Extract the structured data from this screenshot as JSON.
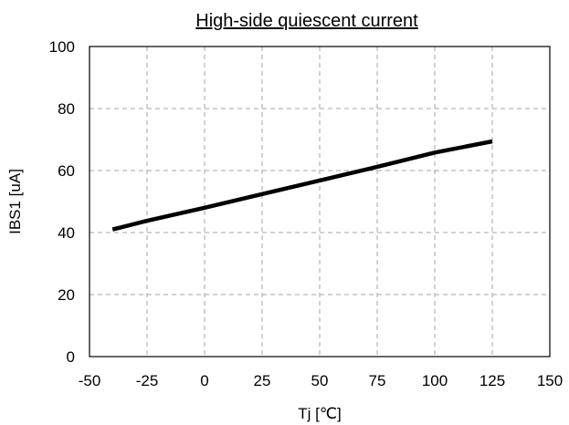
{
  "chart_data": {
    "type": "line",
    "title": "High-side quiescent current",
    "xlabel": "Tj [℃]",
    "ylabel": "IBS1 [uA]",
    "xlim": [
      -50,
      150
    ],
    "ylim": [
      0,
      100
    ],
    "xticks": [
      -50,
      -25,
      0,
      25,
      50,
      75,
      100,
      125,
      150
    ],
    "yticks": [
      0,
      20,
      40,
      60,
      80,
      100
    ],
    "grid": true,
    "series": [
      {
        "x": [
          -40,
          -25,
          0,
          25,
          50,
          75,
          100,
          125
        ],
        "y": [
          41.0,
          43.8,
          48.0,
          52.4,
          56.8,
          61.2,
          65.8,
          69.4
        ],
        "color": "#000000"
      }
    ]
  }
}
